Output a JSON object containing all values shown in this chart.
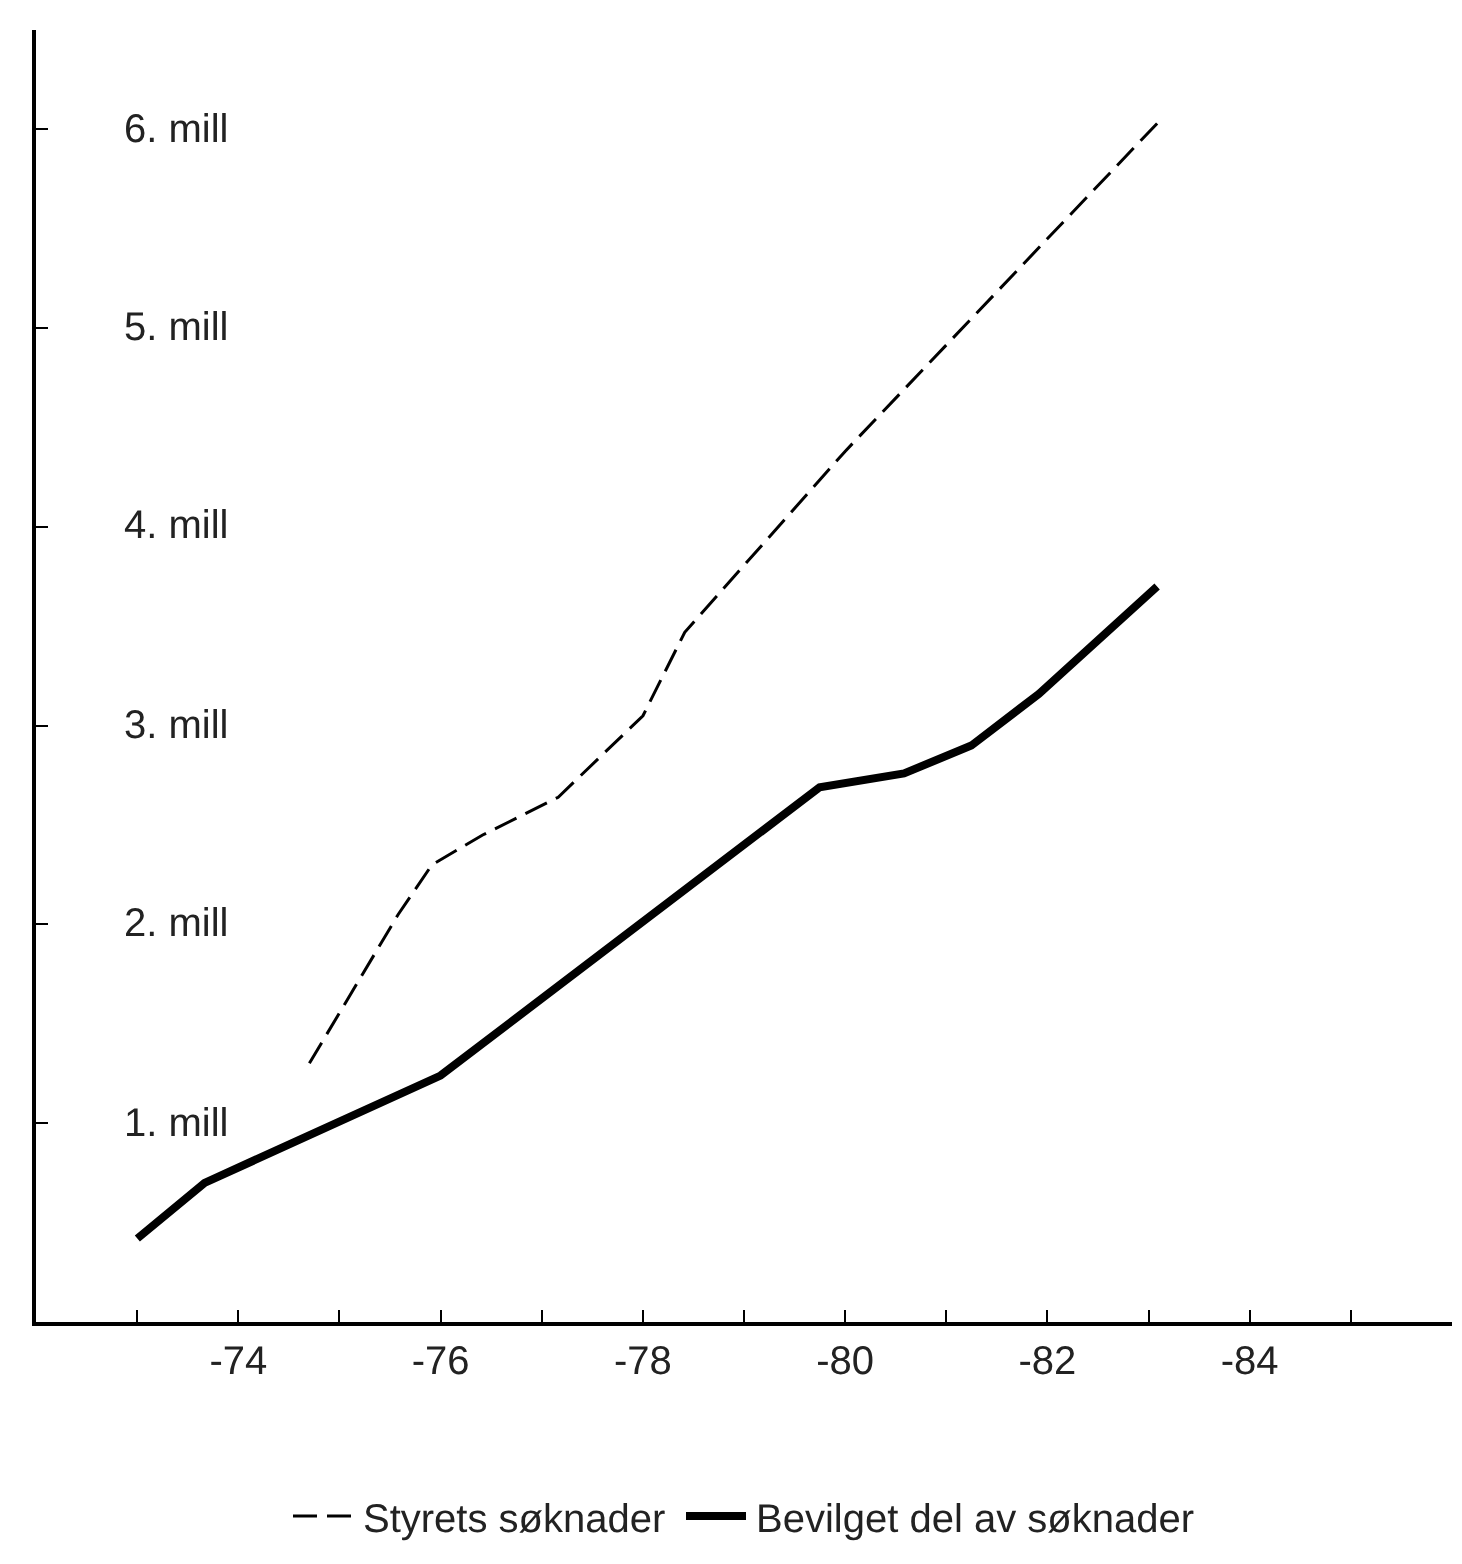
{
  "chart_data": {
    "type": "line",
    "xlim": [
      "1972",
      "1986"
    ],
    "ylim": [
      0,
      6.5
    ],
    "xticks": [
      {
        "value": "1973",
        "label": null
      },
      {
        "value": "1974",
        "label": "-74"
      },
      {
        "value": "1975",
        "label": null
      },
      {
        "value": "1976",
        "label": "-76"
      },
      {
        "value": "1977",
        "label": null
      },
      {
        "value": "1978",
        "label": "-78"
      },
      {
        "value": "1979",
        "label": null
      },
      {
        "value": "1980",
        "label": "-80"
      },
      {
        "value": "1981",
        "label": null
      },
      {
        "value": "1982",
        "label": "-82"
      },
      {
        "value": "1983",
        "label": null
      },
      {
        "value": "1984",
        "label": "-84"
      },
      {
        "value": "1985",
        "label": null
      }
    ],
    "yticks": [
      {
        "value": 1,
        "label": "1. mill"
      },
      {
        "value": 2,
        "label": "2. mill"
      },
      {
        "value": 3,
        "label": "3. mill"
      },
      {
        "value": 4,
        "label": "4. mill"
      },
      {
        "value": 5,
        "label": "5. mill"
      },
      {
        "value": 6,
        "label": "6. mill"
      }
    ],
    "legend": "bottom",
    "marker": "none",
    "series": [
      {
        "name": "Styrets søknader",
        "color": "#000000",
        "line_style": "dashed",
        "x": [
          "1974-09",
          "1975-08",
          "1975-12",
          "1976-06",
          "1977-03",
          "1978-01",
          "1978-06",
          "1980-01",
          "1983-02"
        ],
        "values": [
          1.27,
          2.05,
          2.3,
          2.45,
          2.64,
          3.05,
          3.47,
          4.38,
          6.03
        ]
      },
      {
        "name": "Bevilget del av søknader",
        "color": "#000000",
        "line_style": "solid",
        "x": [
          "1973-01",
          "1973-09",
          "1976-01",
          "1979-10",
          "1980-08",
          "1981-04",
          "1981-12",
          "1983-02"
        ],
        "values": [
          0.42,
          0.7,
          1.24,
          2.69,
          2.76,
          2.9,
          3.16,
          3.7
        ]
      }
    ]
  }
}
